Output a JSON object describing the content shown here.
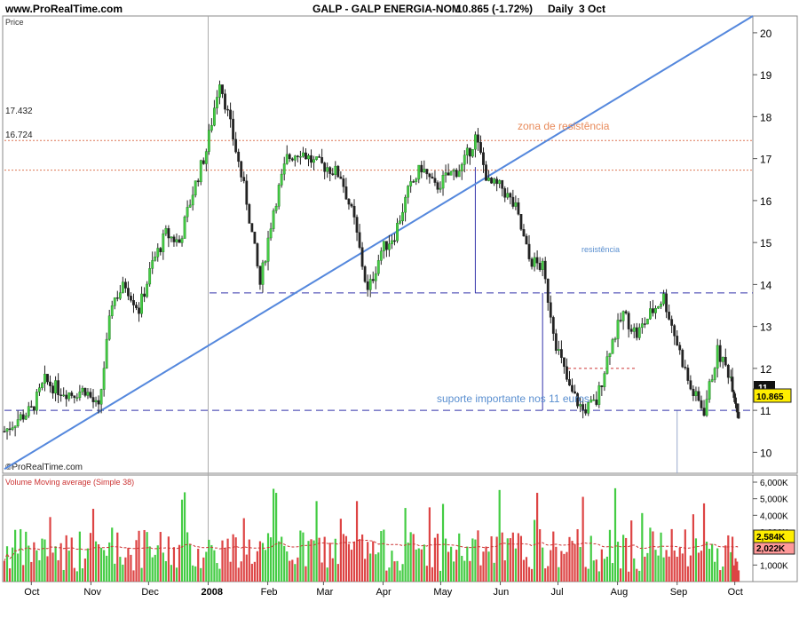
{
  "header": {
    "site": "www.ProRealTime.com",
    "title": "GALP - GALP ENERGIA-NOM",
    "quote": "10.865 (-1.72%)",
    "period": "Daily",
    "date": "3 Oct"
  },
  "price_panel": {
    "label": "Price",
    "watermark": "©ProRealTime.com",
    "last_price_label": "10.865",
    "level_label_upper": "17.432",
    "level_label_lower": "16.724",
    "annotation_resistance_zone": "zona de resistência",
    "annotation_resistance": "resistência",
    "annotation_support": "suporte importante nos 11 euros",
    "support_axis_label": "11"
  },
  "volume_panel": {
    "label": "Volume  Moving average (Simple 38)",
    "last_volume_label": "2,584K",
    "ma_label": "2,022K"
  },
  "colors": {
    "up_bar": "#44cc44",
    "down_bar": "#dd4444",
    "trendline": "#5588dd",
    "support_line": "#3333aa",
    "resistance_zone": "#dd7755",
    "annotation_text": "#5a8fd0",
    "annotation_orange": "#e88a5a",
    "ma_line": "#cc3333"
  },
  "chart_data": [
    {
      "type": "line",
      "name": "price",
      "x": [
        "2007-09-17",
        "2007-09-24",
        "2007-10-01",
        "2007-10-08",
        "2007-10-15",
        "2007-10-22",
        "2007-10-29",
        "2007-11-05",
        "2007-11-12",
        "2007-11-19",
        "2007-11-26",
        "2007-12-03",
        "2007-12-10",
        "2007-12-17",
        "2007-12-24",
        "2007-12-31",
        "2008-01-07",
        "2008-01-14",
        "2008-01-21",
        "2008-01-28",
        "2008-02-04",
        "2008-02-11",
        "2008-02-18",
        "2008-02-25",
        "2008-03-03",
        "2008-03-10",
        "2008-03-17",
        "2008-03-24",
        "2008-03-31",
        "2008-04-07",
        "2008-04-14",
        "2008-04-21",
        "2008-04-28",
        "2008-05-05",
        "2008-05-12",
        "2008-05-19",
        "2008-05-26",
        "2008-06-02",
        "2008-06-09",
        "2008-06-16",
        "2008-06-23",
        "2008-06-30",
        "2008-07-07",
        "2008-07-14",
        "2008-07-21",
        "2008-07-28",
        "2008-08-04",
        "2008-08-11",
        "2008-08-18",
        "2008-08-25",
        "2008-09-01",
        "2008-09-08",
        "2008-09-15",
        "2008-09-22",
        "2008-09-29",
        "2008-10-03"
      ],
      "y": [
        10.5,
        10.8,
        11.0,
        11.7,
        11.5,
        11.4,
        11.5,
        11.0,
        13.6,
        14.0,
        13.4,
        14.5,
        15.2,
        15.0,
        16.2,
        17.2,
        18.9,
        17.5,
        16.0,
        14.0,
        15.8,
        17.0,
        17.2,
        16.9,
        16.8,
        16.6,
        15.5,
        13.8,
        14.8,
        15.2,
        16.2,
        16.8,
        16.3,
        16.6,
        16.8,
        17.5,
        16.4,
        16.3,
        15.8,
        14.6,
        14.4,
        12.6,
        11.5,
        11.0,
        11.2,
        12.5,
        13.3,
        12.8,
        13.3,
        13.7,
        12.6,
        11.5,
        11.0,
        12.4,
        11.8,
        10.865
      ],
      "ylim": [
        9.5,
        20.4
      ],
      "y_ticks": [
        10,
        11,
        12,
        13,
        14,
        15,
        16,
        17,
        18,
        19,
        20
      ],
      "x_labels": [
        "Oct",
        "Nov",
        "Dec",
        "2008",
        "Feb",
        "Mar",
        "Apr",
        "May",
        "Jun",
        "Jul",
        "Aug",
        "Sep",
        "Oct"
      ],
      "levels": {
        "upper_resistance": 17.432,
        "lower_resistance": 16.724,
        "resistance": 13.8,
        "support": 11.0
      },
      "trendline": {
        "from": [
          "2007-09-17",
          9.6
        ],
        "to": [
          "2008-10-03",
          20.4
        ]
      }
    },
    {
      "type": "bar",
      "name": "volume",
      "ylim": [
        0,
        6000
      ],
      "y_ticks": [
        "1,000K",
        "2,000K",
        "3,000K",
        "4,000K",
        "5,000K",
        "6,000K"
      ],
      "moving_average": 2022,
      "last_volume": 2584
    }
  ]
}
